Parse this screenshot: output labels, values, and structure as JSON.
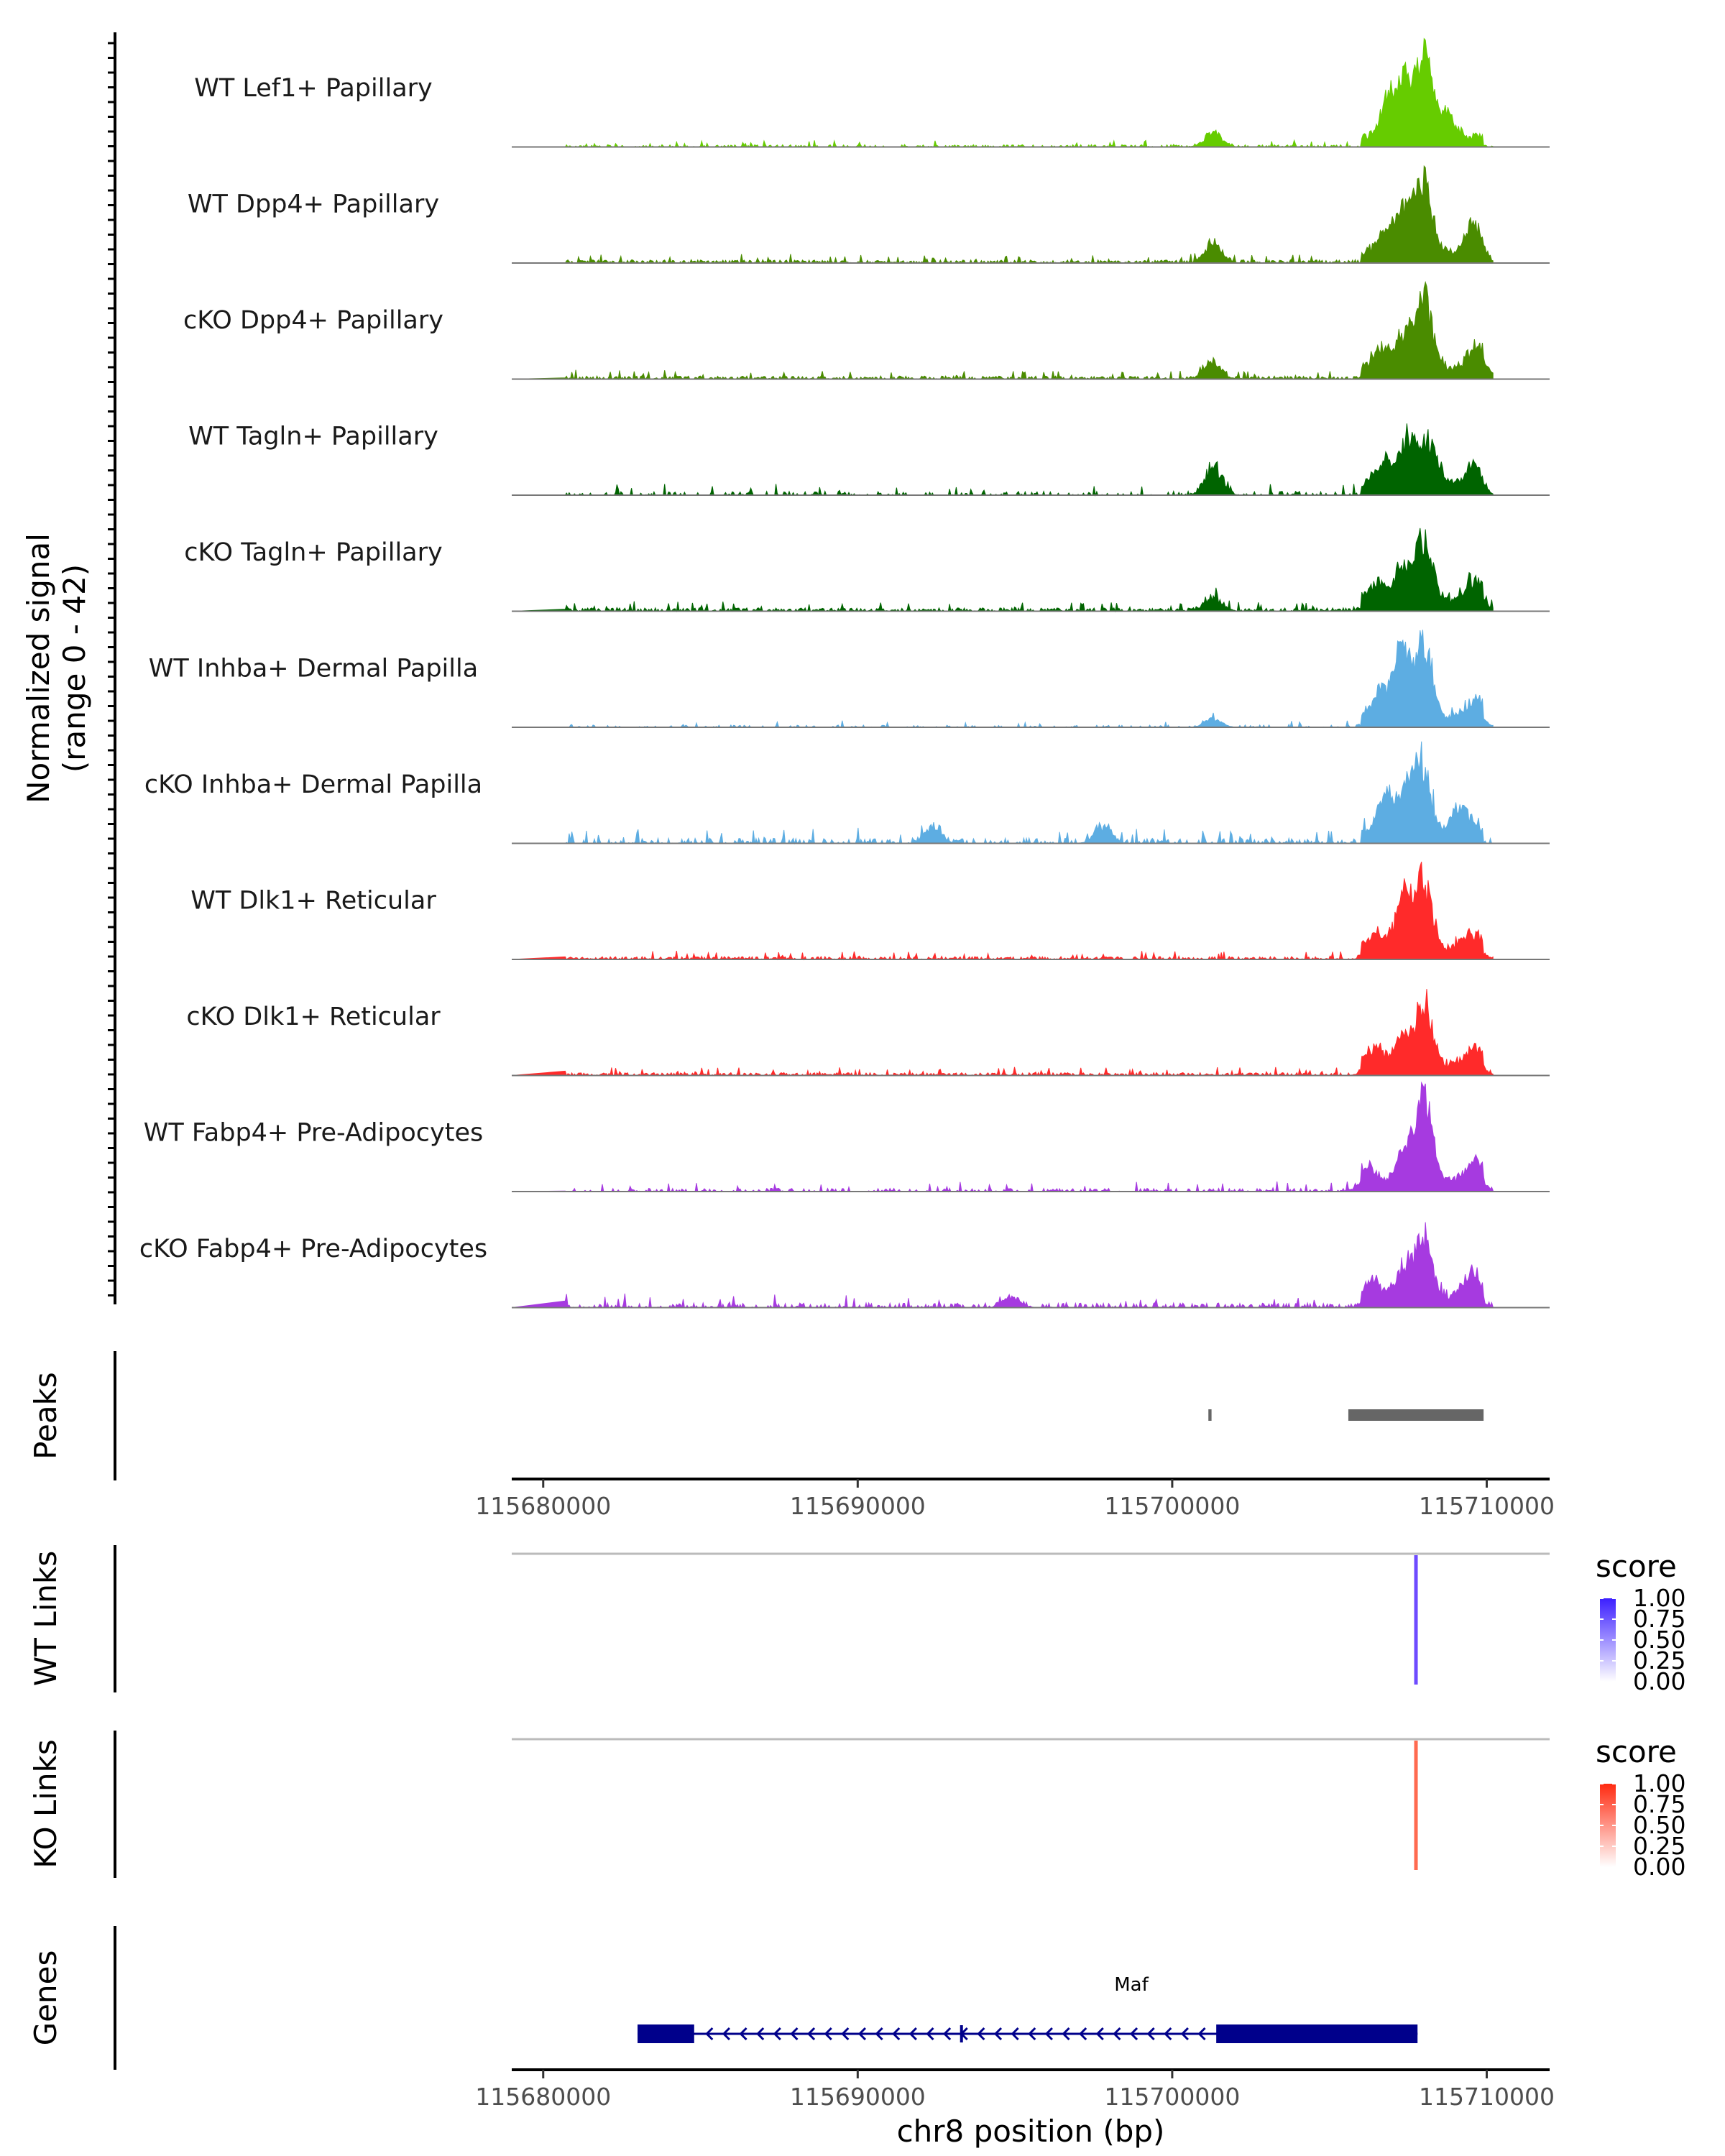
{
  "chart_data": {
    "type": "area",
    "title": "",
    "xlabel": "chr8 position (bp)",
    "xlim": [
      115679000,
      115712000
    ],
    "x_ticks": [
      115680000,
      115690000,
      115700000,
      115710000
    ],
    "x_tick_labels": [
      "115680000",
      "115690000",
      "115700000",
      "115710000"
    ],
    "coverage": {
      "ylabel_line1": "Normalized signal",
      "ylabel_line2": "(range 0 - 42)",
      "ylim": [
        0,
        42
      ],
      "tracks": [
        {
          "name": "WT Lef1+ Papillary",
          "color": "#66CC00",
          "noise": 0.9,
          "density": 0.5,
          "peaks": [
            [
              115708000,
              38
            ],
            [
              115707400,
              24
            ],
            [
              115706900,
              18
            ],
            [
              115708700,
              12
            ],
            [
              115701300,
              7
            ]
          ]
        },
        {
          "name": "WT Dpp4+ Papillary",
          "color": "#4A8C00",
          "noise": 1.2,
          "density": 0.75,
          "peaks": [
            [
              115708000,
              32
            ],
            [
              115707400,
              22
            ],
            [
              115709600,
              14
            ],
            [
              115701300,
              10
            ],
            [
              115706800,
              10
            ]
          ]
        },
        {
          "name": "cKO Dpp4+ Papillary",
          "color": "#4A8C00",
          "noise": 1.2,
          "density": 0.75,
          "peaks": [
            [
              115708000,
              35
            ],
            [
              115707400,
              16
            ],
            [
              115709700,
              12
            ],
            [
              115701300,
              8
            ],
            [
              115706700,
              10
            ]
          ]
        },
        {
          "name": "WT Tagln+ Papillary",
          "color": "#006400",
          "noise": 1.5,
          "density": 0.35,
          "peaks": [
            [
              115707500,
              25
            ],
            [
              115708200,
              20
            ],
            [
              115701300,
              14
            ],
            [
              115706700,
              12
            ],
            [
              115709600,
              9
            ]
          ]
        },
        {
          "name": "cKO Tagln+ Papillary",
          "color": "#006400",
          "noise": 1.3,
          "density": 0.75,
          "peaks": [
            [
              115708000,
              30
            ],
            [
              115707300,
              16
            ],
            [
              115709600,
              10
            ],
            [
              115701300,
              7
            ],
            [
              115706500,
              8
            ]
          ]
        },
        {
          "name": "WT Inhba+ Dermal Papilla",
          "color": "#5DADE2",
          "noise": 0.9,
          "density": 0.3,
          "peaks": [
            [
              115707300,
              35
            ],
            [
              115708000,
              35
            ],
            [
              115709600,
              10
            ],
            [
              115706600,
              12
            ],
            [
              115701300,
              4
            ]
          ]
        },
        {
          "name": "cKO Inhba+ Dermal Papilla",
          "color": "#5DADE2",
          "noise": 2.0,
          "density": 0.45,
          "peaks": [
            [
              115708000,
              28
            ],
            [
              115707500,
              24
            ],
            [
              115706800,
              18
            ],
            [
              115709200,
              14
            ],
            [
              115692400,
              8
            ],
            [
              115697800,
              8
            ]
          ]
        },
        {
          "name": "WT Dlk1+ Reticular",
          "color": "#FF2A2A",
          "noise": 1.1,
          "density": 0.7,
          "peaks": [
            [
              115707400,
              26
            ],
            [
              115708000,
              30
            ],
            [
              115709500,
              8
            ],
            [
              115706500,
              8
            ]
          ]
        },
        {
          "name": "cKO Dlk1+ Reticular",
          "color": "#FF2A2A",
          "noise": 1.1,
          "density": 0.7,
          "peaks": [
            [
              115708000,
              30
            ],
            [
              115707300,
              14
            ],
            [
              115709600,
              8
            ],
            [
              115706400,
              8
            ]
          ]
        },
        {
          "name": "WT Fabp4+ Pre-Adipocytes",
          "color": "#A63AE0",
          "noise": 1.3,
          "density": 0.4,
          "peaks": [
            [
              115708000,
              41
            ],
            [
              115707400,
              14
            ],
            [
              115709600,
              10
            ],
            [
              115706200,
              7
            ]
          ]
        },
        {
          "name": "cKO Fabp4+ Pre-Adipocytes",
          "color": "#A63AE0",
          "noise": 1.8,
          "density": 0.45,
          "peaks": [
            [
              115708000,
              28
            ],
            [
              115707400,
              16
            ],
            [
              115709500,
              12
            ],
            [
              115706400,
              8
            ],
            [
              115694900,
              5
            ]
          ]
        }
      ]
    },
    "peaks_track": {
      "label": "Peaks",
      "color": "#666666",
      "regions": [
        [
          115701150,
          115701250
        ],
        [
          115705600,
          115709900
        ]
      ]
    },
    "link_tracks": [
      {
        "label": "WT Links",
        "legend_title": "score",
        "legend_ticks": [
          "1.00",
          "0.75",
          "0.50",
          "0.25",
          "0.00"
        ],
        "high_color": "#3C1FFF",
        "link_pos": 115707750,
        "link_score": 0.7,
        "link_color": "#6E4BFF"
      },
      {
        "label": "KO Links",
        "legend_title": "score",
        "legend_ticks": [
          "1.00",
          "0.75",
          "0.50",
          "0.25",
          "0.00"
        ],
        "high_color": "#FF2A10",
        "link_pos": 115707750,
        "link_score": 0.7,
        "link_color": "#FF6A50"
      }
    ],
    "genes_track": {
      "label": "Genes",
      "gene": "Maf",
      "strand": "-",
      "color": "#00008B",
      "start": 115683000,
      "end": 115707800,
      "exons": [
        [
          115683000,
          115684800
        ],
        [
          115701400,
          115707800
        ]
      ],
      "cds_start": 115684800,
      "cds_end": 115701400
    }
  }
}
